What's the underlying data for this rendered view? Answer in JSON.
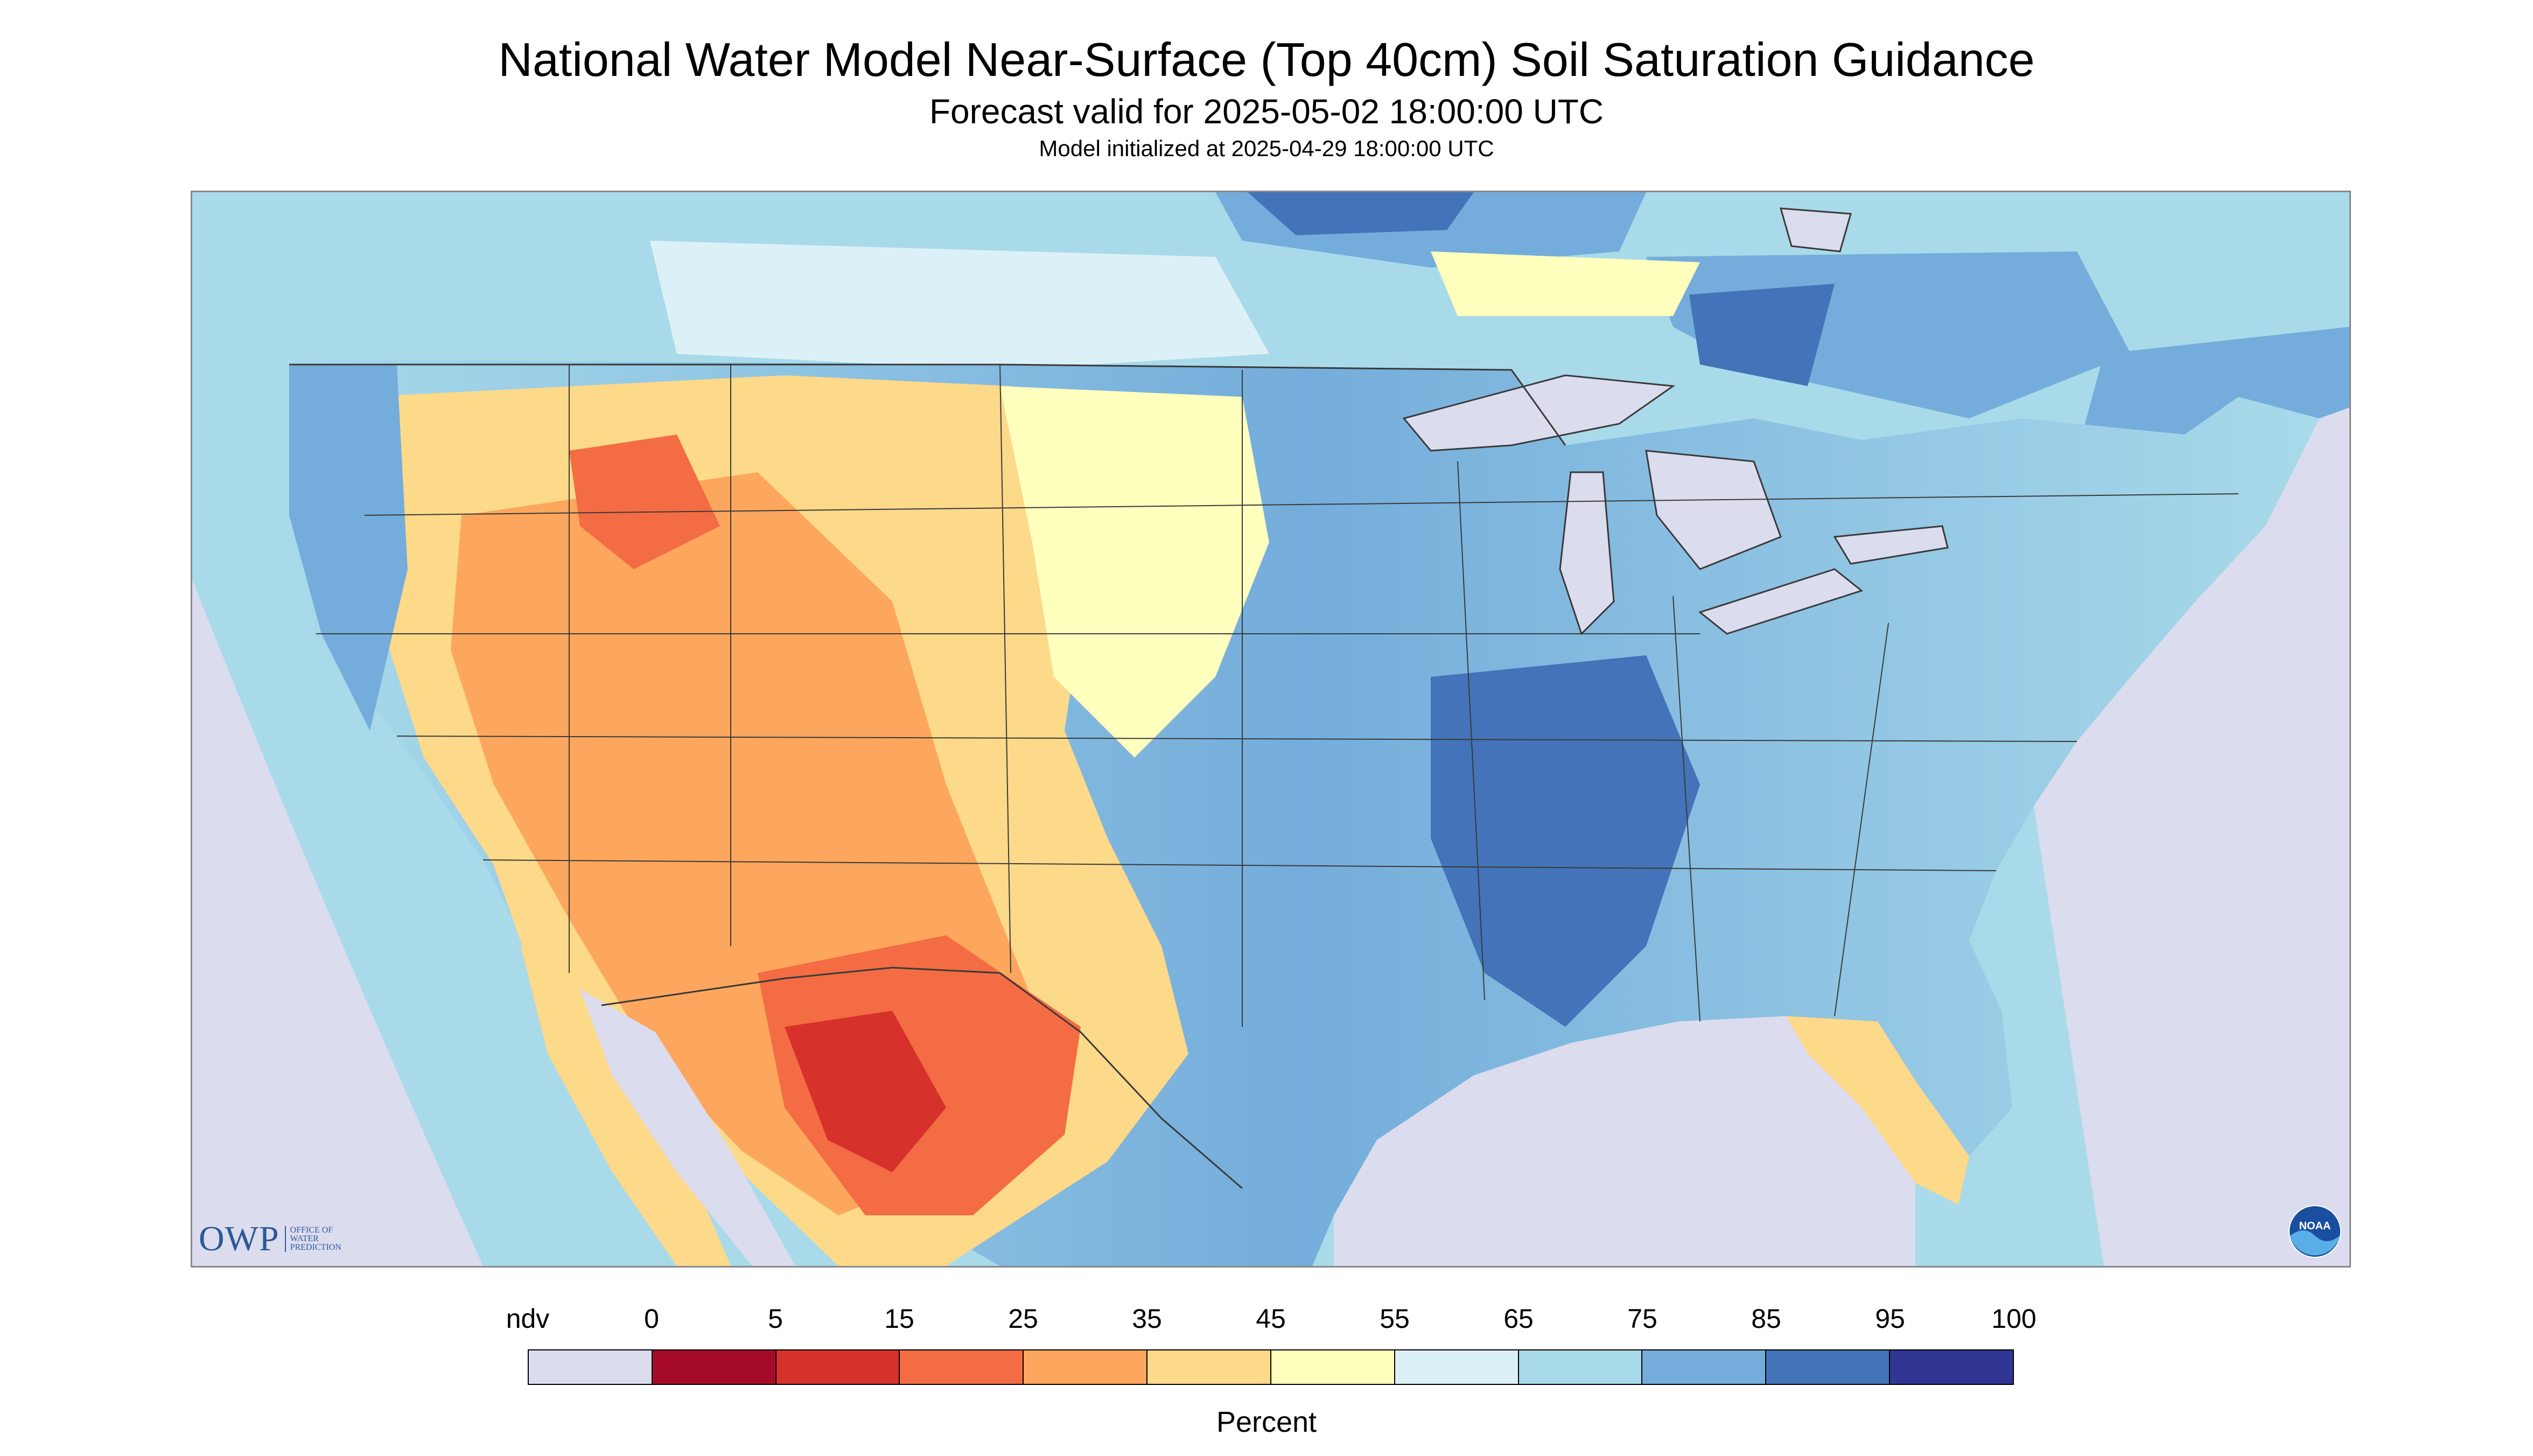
{
  "header": {
    "title": "National Water Model Near-Surface (Top 40cm) Soil Saturation Guidance",
    "forecast": "Forecast valid for 2025-05-02 18:00:00 UTC",
    "initialized": "Model initialized at 2025-04-29 18:00:00 UTC"
  },
  "logos": {
    "owp_mark": "OWP",
    "owp_text": "Office of\nWater\nPrediction",
    "noaa_text": "NOAA"
  },
  "legend": {
    "ticks": [
      "ndv",
      "0",
      "5",
      "15",
      "25",
      "35",
      "45",
      "55",
      "65",
      "75",
      "85",
      "95",
      "100"
    ],
    "colors": [
      "#dcdcef",
      "#a50b28",
      "#d7312b",
      "#f36c44",
      "#fca75d",
      "#fdd98a",
      "#ffffbe",
      "#dcf1f7",
      "#a9daea",
      "#74addb",
      "#4373b8",
      "#313695"
    ],
    "unit": "Percent"
  },
  "map": {
    "nodata_color": "#dcdcef",
    "water_color": "#dcdcef",
    "border_color": "#3a3a3a"
  }
}
